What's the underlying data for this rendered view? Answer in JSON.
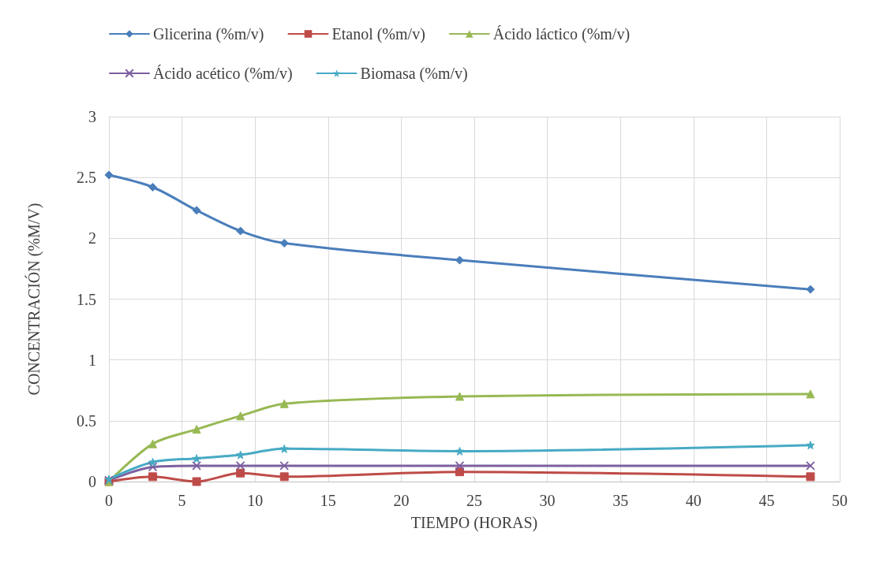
{
  "chart_data": {
    "type": "line",
    "xlabel": "TIEMPO (HORAS)",
    "ylabel": "CONCENTRACIÓN (%M/V)",
    "x": [
      0,
      3,
      6,
      9,
      12,
      24,
      48
    ],
    "series": [
      {
        "name": "Glicerina (%m/v)",
        "color": "#4a7ebb",
        "marker": "diamond",
        "values": [
          2.52,
          2.42,
          2.23,
          2.06,
          1.96,
          1.82,
          1.58
        ]
      },
      {
        "name": "Etanol (%m/v)",
        "color": "#be4b48",
        "marker": "square",
        "values": [
          0.0,
          0.04,
          0.0,
          0.07,
          0.04,
          0.08,
          0.04
        ]
      },
      {
        "name": "Ácido láctico (%m/v)",
        "color": "#98b954",
        "marker": "triangle",
        "values": [
          0.0,
          0.31,
          0.43,
          0.54,
          0.64,
          0.7,
          0.72
        ]
      },
      {
        "name": "Ácido acético (%m/v)",
        "color": "#7d60a0",
        "marker": "cross",
        "values": [
          0.01,
          0.12,
          0.13,
          0.13,
          0.13,
          0.13,
          0.13
        ]
      },
      {
        "name": "Biomasa (%m/v)",
        "color": "#46aac5",
        "marker": "star",
        "values": [
          0.02,
          0.16,
          0.19,
          0.22,
          0.27,
          0.25,
          0.3
        ]
      }
    ],
    "xlim": [
      0,
      50
    ],
    "xticks": [
      0,
      5,
      10,
      15,
      20,
      25,
      30,
      35,
      40,
      45,
      50
    ],
    "ylim": [
      0,
      3
    ],
    "yticks": [
      0,
      0.5,
      1,
      1.5,
      2,
      2.5,
      3
    ],
    "grid": true,
    "legend": "top",
    "line_style": "solid"
  }
}
